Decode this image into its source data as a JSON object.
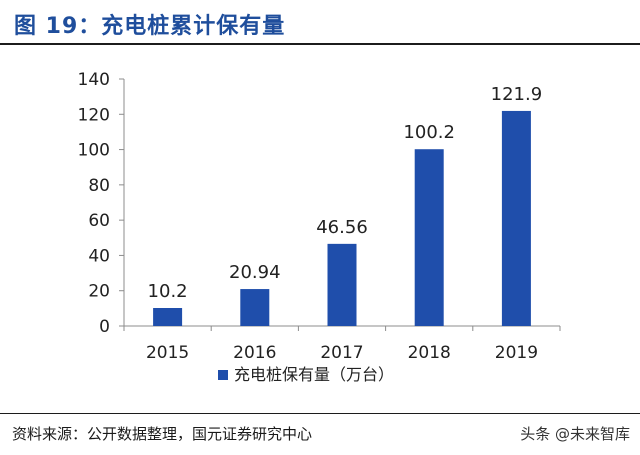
{
  "header": {
    "title": "图 19：充电桩累计保有量"
  },
  "footer": {
    "source": "资料来源：公开数据整理，国元证券研究中心",
    "watermark": "头条 @未来智库"
  },
  "colors": {
    "bar": "#1f4eab",
    "title": "#1f4e9c"
  },
  "chart_data": {
    "type": "bar",
    "title": "",
    "xlabel": "",
    "ylabel": "",
    "categories": [
      "2015",
      "2016",
      "2017",
      "2018",
      "2019"
    ],
    "series": [
      {
        "name": "充电桩保有量（万台）",
        "values": [
          10.2,
          20.94,
          46.56,
          100.2,
          121.9
        ]
      }
    ],
    "data_labels": [
      "10.2",
      "20.94",
      "46.56",
      "100.2",
      "121.9"
    ],
    "yticks": [
      "0",
      "20",
      "40",
      "60",
      "80",
      "100",
      "120",
      "140"
    ],
    "ylim": [
      0,
      140
    ],
    "grid": false,
    "legend_position": "bottom"
  }
}
